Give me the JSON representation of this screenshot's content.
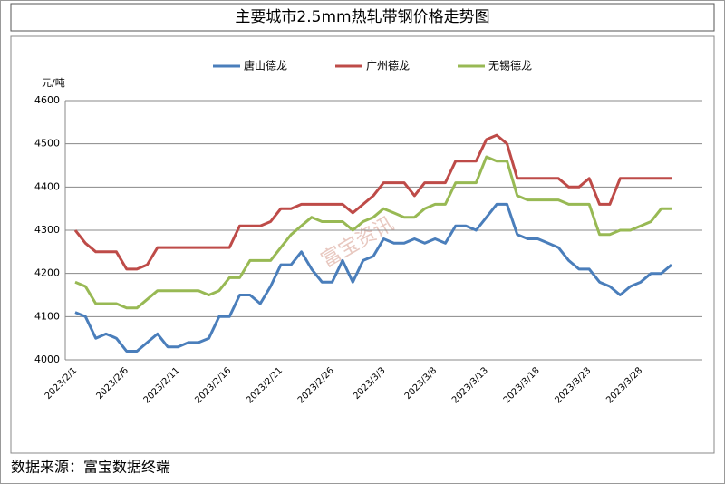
{
  "chart_data": {
    "type": "line",
    "title": "主要城市2.5mm热轧带钢价格走势图",
    "y_label": "元/吨",
    "source": "数据来源：富宝数据终端",
    "watermark": "富宝资讯",
    "categories": [
      "2023/2/1",
      null,
      null,
      null,
      null,
      "2023/2/6",
      null,
      null,
      null,
      null,
      "2023/2/11",
      null,
      null,
      null,
      null,
      "2023/2/16",
      null,
      null,
      null,
      null,
      "2023/2/21",
      null,
      null,
      null,
      null,
      "2023/2/26",
      null,
      null,
      null,
      null,
      "2023/3/3",
      null,
      null,
      null,
      null,
      "2023/3/8",
      null,
      null,
      null,
      null,
      "2023/3/13",
      null,
      null,
      null,
      null,
      "2023/3/18",
      null,
      null,
      null,
      null,
      "2023/3/23",
      null,
      null,
      null,
      null,
      "2023/3/28",
      null,
      null,
      null
    ],
    "series": [
      {
        "name": "唐山德龙",
        "color": "#4a7ebb",
        "values": [
          4110,
          4100,
          4050,
          4060,
          4050,
          4020,
          4020,
          4040,
          4060,
          4030,
          4030,
          4040,
          4040,
          4050,
          4100,
          4100,
          4150,
          4150,
          4130,
          4170,
          4220,
          4220,
          4250,
          4210,
          4180,
          4180,
          4230,
          4180,
          4230,
          4240,
          4280,
          4270,
          4270,
          4280,
          4270,
          4280,
          4270,
          4310,
          4310,
          4300,
          4330,
          4360,
          4360,
          4290,
          4280,
          4280,
          4270,
          4260,
          4230,
          4210,
          4210,
          4180,
          4170,
          4150,
          4170,
          4180,
          4200,
          4200,
          4220
        ]
      },
      {
        "name": "广州德龙",
        "color": "#be4b48",
        "values": [
          4300,
          4270,
          4250,
          4250,
          4250,
          4210,
          4210,
          4220,
          4260,
          4260,
          4260,
          4260,
          4260,
          4260,
          4260,
          4260,
          4310,
          4310,
          4310,
          4320,
          4350,
          4350,
          4360,
          4360,
          4360,
          4360,
          4360,
          4340,
          4360,
          4380,
          4410,
          4410,
          4410,
          4380,
          4410,
          4410,
          4410,
          4460,
          4460,
          4460,
          4510,
          4520,
          4500,
          4420,
          4420,
          4420,
          4420,
          4420,
          4400,
          4400,
          4420,
          4360,
          4360,
          4420,
          4420,
          4420,
          4420,
          4420,
          4420
        ]
      },
      {
        "name": "无锡德龙",
        "color": "#98b954",
        "values": [
          4180,
          4170,
          4130,
          4130,
          4130,
          4120,
          4120,
          4140,
          4160,
          4160,
          4160,
          4160,
          4160,
          4150,
          4160,
          4190,
          4190,
          4230,
          4230,
          4230,
          4260,
          4290,
          4310,
          4330,
          4320,
          4320,
          4320,
          4300,
          4320,
          4330,
          4350,
          4340,
          4330,
          4330,
          4350,
          4360,
          4360,
          4410,
          4410,
          4410,
          4470,
          4460,
          4460,
          4380,
          4370,
          4370,
          4370,
          4370,
          4360,
          4360,
          4360,
          4290,
          4290,
          4300,
          4300,
          4310,
          4320,
          4350,
          4350
        ]
      }
    ],
    "ylim": [
      4000,
      4600
    ],
    "yticks": [
      4000,
      4100,
      4200,
      4300,
      4400,
      4500,
      4600
    ],
    "grid": true,
    "legend": "top"
  }
}
